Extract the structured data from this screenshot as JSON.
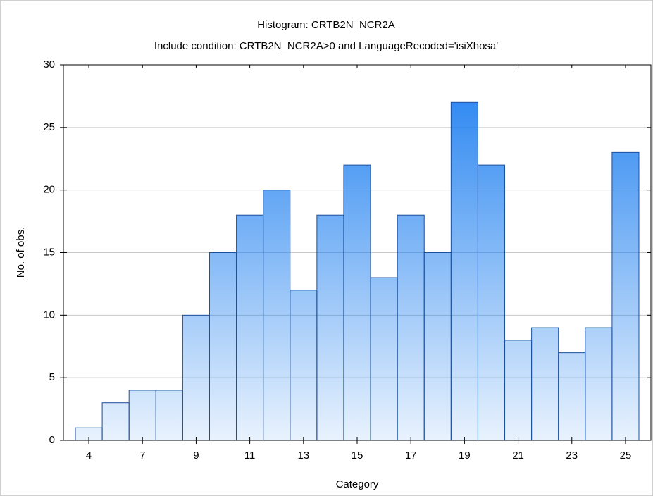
{
  "chart_data": {
    "type": "bar",
    "title": "Histogram: CRTB2N_NCR2A",
    "subtitle": "Include condition: CRTB2N_NCR2A>0 and LanguageRecoded='isiXhosa'",
    "x_label": "Category",
    "y_label": "No. of obs.",
    "categories": [
      "4",
      null,
      "7",
      null,
      "9",
      null,
      "11",
      null,
      "13",
      null,
      "15",
      null,
      "17",
      null,
      "19",
      null,
      "21",
      null,
      "23",
      null,
      "25"
    ],
    "values": [
      1,
      3,
      4,
      4,
      10,
      15,
      18,
      20,
      12,
      18,
      22,
      13,
      18,
      15,
      27,
      22,
      8,
      9,
      7,
      9,
      23
    ],
    "color": "#1f80f0",
    "ylim": [
      0,
      30
    ],
    "yticks": [
      0,
      5,
      10,
      15,
      20,
      25,
      30
    ],
    "grid": true
  }
}
